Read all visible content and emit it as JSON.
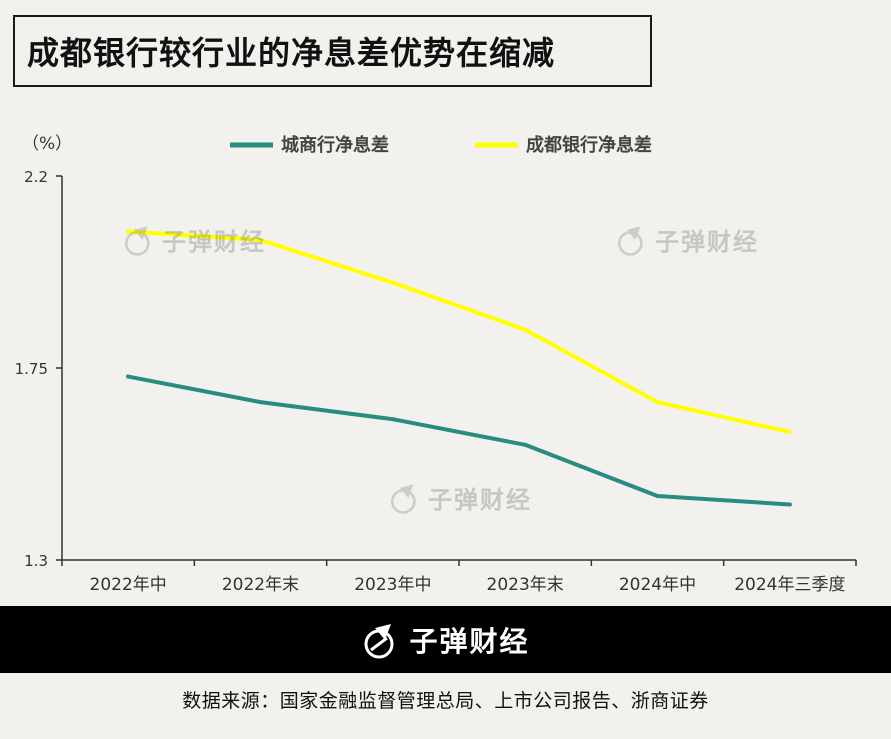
{
  "title": "成都银行较行业的净息差优势在缩减",
  "brand": {
    "name": "子弹财经",
    "logo_icon": "bullet-logo-icon"
  },
  "source": "数据来源：国家金融监督管理总局、上市公司报告、浙商证券",
  "colors": {
    "city_bank": "#2a8c80",
    "chengdu_bank": "#ffff00",
    "axis": "#333333"
  },
  "chart_data": {
    "type": "line",
    "unit_label": "（%）",
    "categories": [
      "2022年中",
      "2022年末",
      "2023年中",
      "2023年末",
      "2024年中",
      "2024年三季度"
    ],
    "y_ticks": [
      "2.2",
      "1.75",
      "1.3"
    ],
    "ylim": [
      1.3,
      2.2
    ],
    "legend_position": "top-center",
    "grid": false,
    "series": [
      {
        "name": "城商行净息差",
        "values": [
          1.73,
          1.67,
          1.63,
          1.57,
          1.45,
          1.43
        ]
      },
      {
        "name": "成都银行净息差",
        "values": [
          2.07,
          2.05,
          1.95,
          1.84,
          1.67,
          1.6
        ]
      }
    ]
  }
}
